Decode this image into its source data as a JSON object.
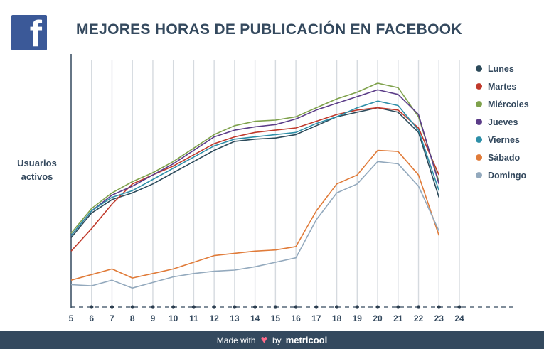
{
  "logo": {
    "glyph": "f"
  },
  "footer": {
    "made_with": "Made with",
    "heart": "♥",
    "by": "by",
    "brand": "metricool"
  },
  "chart_data": {
    "type": "line",
    "title": "MEJORES HORAS DE PUBLICACIÓN EN FACEBOOK",
    "ylabel_lines": [
      "Usuarios",
      "activos"
    ],
    "xlabel": "",
    "x": [
      5,
      6,
      7,
      8,
      9,
      10,
      11,
      12,
      13,
      14,
      15,
      16,
      17,
      18,
      19,
      20,
      21,
      22,
      23
    ],
    "xticks": [
      5,
      6,
      7,
      8,
      9,
      10,
      11,
      12,
      13,
      14,
      15,
      16,
      17,
      18,
      19,
      20,
      21,
      22,
      23,
      24
    ],
    "xlim": [
      5,
      24
    ],
    "ylim": [
      0,
      100
    ],
    "grid": true,
    "legend_position": "right",
    "series": [
      {
        "name": "Lunes",
        "color": "#2c4a5a",
        "values": [
          31,
          42,
          48,
          51,
          55,
          60,
          65,
          70,
          74,
          75,
          75.5,
          77,
          81,
          85,
          87,
          89,
          87,
          78,
          49
        ]
      },
      {
        "name": "Martes",
        "color": "#c0392b",
        "values": [
          25,
          35,
          46,
          55,
          59,
          63,
          68,
          73,
          76,
          78,
          79,
          80,
          83,
          86,
          88,
          89,
          88,
          80,
          59
        ]
      },
      {
        "name": "Miércoles",
        "color": "#7ea14b",
        "values": [
          33,
          44,
          51,
          56,
          60,
          65,
          71,
          77,
          81,
          83,
          83.5,
          85,
          89,
          93,
          96,
          100,
          98,
          85,
          56
        ]
      },
      {
        "name": "Jueves",
        "color": "#5b3c88",
        "values": [
          32,
          43,
          50,
          54,
          59,
          64,
          70,
          76,
          79,
          80.5,
          81.5,
          84,
          88,
          91,
          94,
          97,
          95,
          86,
          55
        ]
      },
      {
        "name": "Viernes",
        "color": "#2e8fa8",
        "values": [
          32,
          43,
          49,
          52,
          57,
          62,
          67,
          72,
          75,
          76,
          77,
          78,
          82,
          85,
          89,
          92,
          90,
          79,
          52
        ]
      },
      {
        "name": "Sábado",
        "color": "#e07b39",
        "values": [
          12,
          14.5,
          17,
          13,
          15,
          17,
          20,
          23,
          24,
          25,
          25.5,
          27,
          43,
          55,
          59,
          70,
          69.5,
          59,
          32
        ]
      },
      {
        "name": "Domingo",
        "color": "#93a9bd",
        "values": [
          10,
          9.5,
          12,
          8.5,
          11,
          13.5,
          15,
          16,
          16.5,
          18,
          20,
          22,
          39,
          51,
          55,
          65,
          64,
          54,
          34
        ]
      }
    ]
  }
}
